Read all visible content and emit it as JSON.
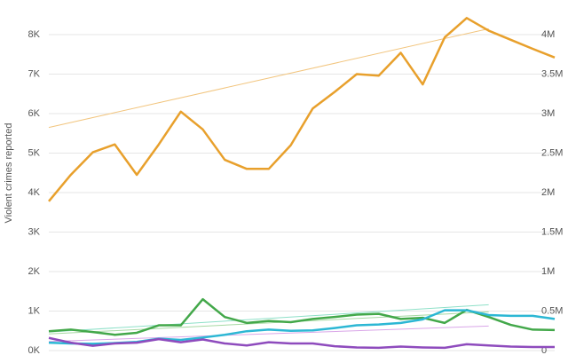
{
  "chart_data": {
    "type": "line",
    "y_label": "Violent crimes reported",
    "categories": [
      null,
      null,
      null,
      null,
      null,
      null,
      null,
      null,
      null,
      null,
      null,
      null,
      null,
      null,
      null,
      null,
      null,
      null,
      null,
      null,
      null,
      null,
      null,
      null
    ],
    "ylim": [
      0,
      8000
    ],
    "yticks": [
      {
        "value": 0,
        "label": "0K"
      },
      {
        "value": 1000,
        "label": "1K"
      },
      {
        "value": 2000,
        "label": "2K"
      },
      {
        "value": 3000,
        "label": "3K"
      },
      {
        "value": 4000,
        "label": "4K"
      },
      {
        "value": 5000,
        "label": "5K"
      },
      {
        "value": 6000,
        "label": "6K"
      },
      {
        "value": 7000,
        "label": "7K"
      },
      {
        "value": 8000,
        "label": "8K"
      }
    ],
    "y2lim": [
      0,
      4000000
    ],
    "y2ticks": [
      0,
      {
        "value": 500000,
        "label": "0.5M"
      },
      {
        "value": 1000000,
        "label": "1M"
      },
      {
        "value": 1500000,
        "label": "1.5M"
      },
      {
        "value": 2000000,
        "label": "2M"
      },
      {
        "value": 2500000,
        "label": "2.5M"
      },
      {
        "value": 3000000,
        "label": "3M"
      },
      {
        "value": 3500000,
        "label": "3.5M"
      },
      {
        "value": 4000000,
        "label": "4M"
      }
    ],
    "grid": true,
    "series": [
      {
        "color": "#e8a02c",
        "values": [
          3780,
          4450,
          5020,
          5220,
          4450,
          5220,
          6050,
          5600,
          4830,
          4600,
          4600,
          5200,
          6130,
          6550,
          7000,
          6960,
          7540,
          6740,
          7930,
          8420,
          8100,
          7870,
          7640,
          7420
        ]
      },
      {
        "color": "#43a84a",
        "values": [
          490,
          530,
          470,
          400,
          450,
          640,
          640,
          1300,
          850,
          700,
          750,
          720,
          800,
          850,
          910,
          930,
          800,
          830,
          700,
          1030,
          850,
          650,
          530,
          520
        ]
      },
      {
        "color": "#2cb7d4",
        "values": [
          200,
          180,
          170,
          190,
          220,
          300,
          270,
          330,
          400,
          490,
          530,
          500,
          510,
          570,
          640,
          660,
          700,
          790,
          1020,
          1020,
          900,
          880,
          880,
          800
        ]
      },
      {
        "color": "#8e4bbd",
        "values": [
          320,
          200,
          120,
          180,
          200,
          290,
          210,
          280,
          180,
          130,
          210,
          180,
          180,
          110,
          80,
          70,
          100,
          80,
          70,
          160,
          130,
          100,
          90,
          90
        ]
      }
    ],
    "trendlines": [
      {
        "color": "#f2c57e",
        "x": [
          0,
          20
        ],
        "values": [
          5650,
          8150
        ]
      },
      {
        "color": "#8ee0c8",
        "x": [
          0,
          20
        ],
        "values": [
          470,
          1160
        ]
      },
      {
        "color": "#a6d9a3",
        "x": [
          0,
          20
        ],
        "values": [
          420,
          980
        ]
      },
      {
        "color": "#d9a6e8",
        "x": [
          0,
          20
        ],
        "values": [
          230,
          620
        ]
      }
    ]
  }
}
